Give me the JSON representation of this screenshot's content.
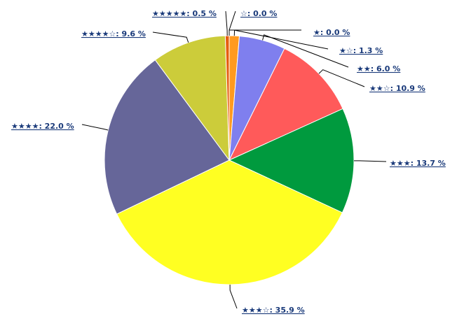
{
  "chart_data": {
    "type": "pie",
    "start_angle": "12 o'clock",
    "direction": "clockwise",
    "slices": [
      {
        "label": "☆",
        "value": 0.0,
        "text": "☆: 0.0 %",
        "color": "#ff9900"
      },
      {
        "label": "★",
        "value": 0.0,
        "text": "★: 0.0 %",
        "color": "#ff9900"
      },
      {
        "label": "★☆",
        "value": 1.3,
        "text": "★☆: 1.3 %",
        "color": "#ff9a1f"
      },
      {
        "label": "★★",
        "value": 6.0,
        "text": "★★: 6.0 %",
        "color": "#7f7fee"
      },
      {
        "label": "★★☆",
        "value": 10.9,
        "text": "★★☆: 10.9 %",
        "color": "#ff5a5a"
      },
      {
        "label": "★★★",
        "value": 13.7,
        "text": "★★★: 13.7 %",
        "color": "#009a3e"
      },
      {
        "label": "★★★☆",
        "value": 35.9,
        "text": "★★★☆: 35.9 %",
        "color": "#ffff22"
      },
      {
        "label": "★★★★",
        "value": 22.0,
        "text": "★★★★: 22.0 %",
        "color": "#666699"
      },
      {
        "label": "★★★★☆",
        "value": 9.6,
        "text": "★★★★☆: 9.6 %",
        "color": "#cccc3a"
      },
      {
        "label": "★★★★★",
        "value": 0.5,
        "text": "★★★★★: 0.5 %",
        "color": "#e65c10"
      }
    ]
  }
}
